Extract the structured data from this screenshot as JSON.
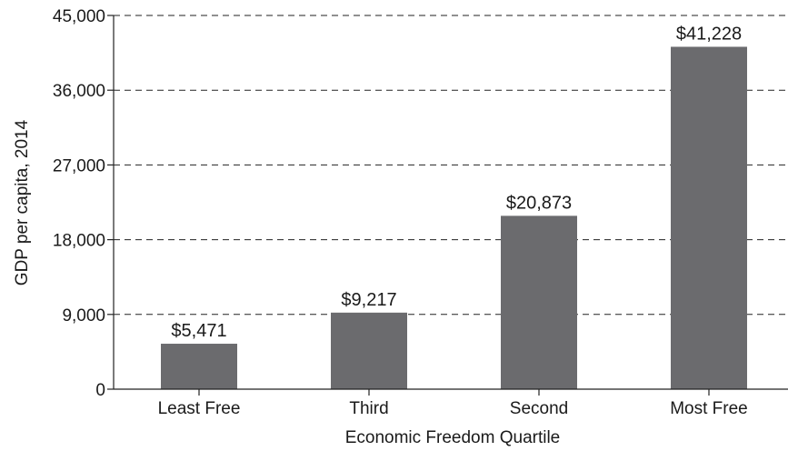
{
  "chart_data": {
    "type": "bar",
    "title": "",
    "xlabel": "Economic Freedom Quartile",
    "ylabel": "GDP per capita, 2014",
    "categories": [
      "Least Free",
      "Third",
      "Second",
      "Most Free"
    ],
    "values": [
      5471,
      9217,
      20873,
      41228
    ],
    "data_labels": [
      "$5,471",
      "$9,217",
      "$20,873",
      "$41,228"
    ],
    "ylim": [
      0,
      45000
    ],
    "yticks": [
      0,
      9000,
      18000,
      27000,
      36000,
      45000
    ],
    "ytick_labels": [
      "0",
      "9,000",
      "18,000",
      "27,000",
      "36,000",
      "45,000"
    ],
    "grid": "horizontal-dashed",
    "bar_color": "#6b6b6e"
  }
}
